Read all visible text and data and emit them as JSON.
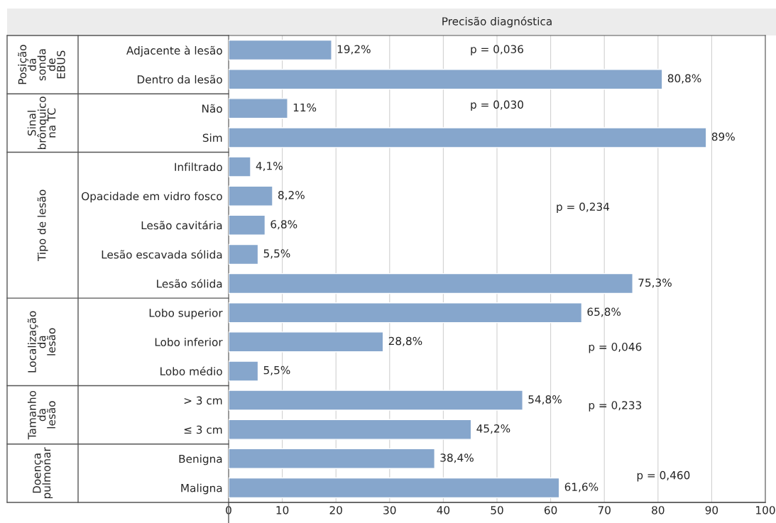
{
  "chart_data": {
    "type": "bar",
    "orientation": "horizontal",
    "title": "Precisão diagnóstica",
    "categories": [
      "Adjacente à lesão",
      "Dentro da lesão",
      "Não",
      "Sim",
      "Infiltrado",
      "Opacidade em vidro fosco",
      "Lesão cavitária",
      "Lesão escavada sólida",
      "Lesão sólida",
      "Lobo superior",
      "Lobo inferior",
      "Lobo médio",
      "> 3 cm",
      "≤ 3 cm",
      "Benigna",
      "Maligna"
    ],
    "values": [
      19.2,
      80.8,
      11,
      89,
      4.1,
      8.2,
      6.8,
      5.5,
      75.3,
      65.8,
      28.8,
      5.5,
      54.8,
      45.2,
      38.4,
      61.6
    ],
    "value_labels": [
      "19,2%",
      "80,8%",
      "11%",
      "89%",
      "4,1%",
      "8,2%",
      "6,8%",
      "5,5%",
      "75,3%",
      "65,8%",
      "28,8%",
      "5,5%",
      "54,8%",
      "45,2%",
      "38,4%",
      "61,6%"
    ],
    "color": "#86a6cc",
    "xlim": [
      0,
      100
    ],
    "xticks": [
      0,
      10,
      20,
      30,
      40,
      50,
      60,
      70,
      80,
      90,
      100
    ],
    "grid": "x",
    "annotations": [
      "Posição\nda\nsonda\nde\nEBUS",
      "Sinal\nbrônquico\nna TC",
      "Tipo de lesão",
      "Localização\nda\nlesão",
      "Tamanho\nda\nlesão",
      "Doença\npulmonar",
      "p = 0,036",
      "p = 0,030",
      "p = 0,234",
      "p = 0,046",
      "p = 0,233",
      "p = 0,460"
    ]
  }
}
